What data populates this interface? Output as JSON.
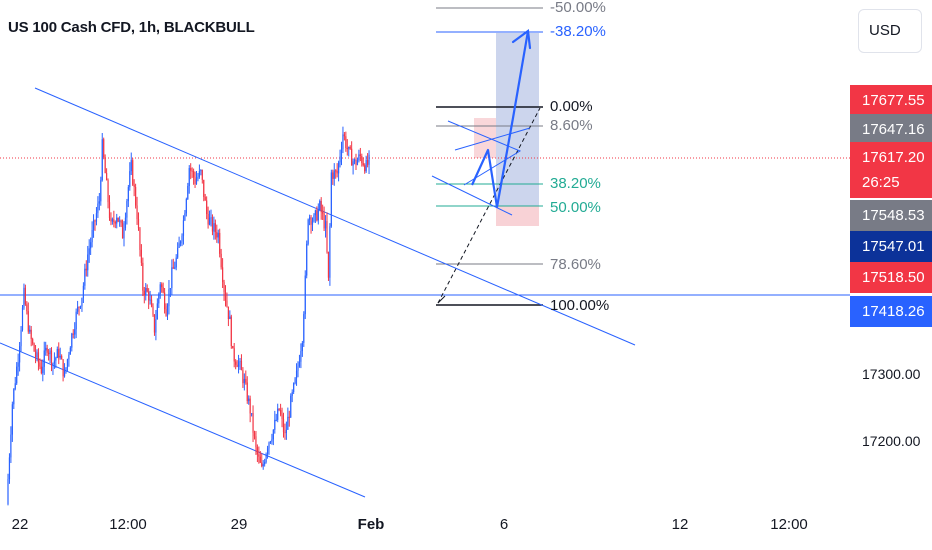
{
  "header": {
    "title": "US 100 Cash CFD, 1h, BLACKBULL"
  },
  "currency_button": "USD",
  "price_scale": {
    "labels": [
      {
        "text": "17677.55",
        "kind": "red"
      },
      {
        "text": "17647.16",
        "kind": "grey"
      },
      {
        "text": "17548.53",
        "kind": "grey"
      },
      {
        "text": "17547.01",
        "kind": "navy"
      },
      {
        "text": "17518.50",
        "kind": "red"
      },
      {
        "text": "17418.26",
        "kind": "blue"
      }
    ],
    "current_price": "17617.20",
    "countdown": "26:25",
    "ticks": [
      "17300.00",
      "17200.00"
    ]
  },
  "time_axis": [
    "22",
    "12:00",
    "29",
    "Feb",
    "6",
    "12",
    "12:00"
  ],
  "fibonacci": {
    "levels": [
      "-50.00%",
      "-38.20%",
      "0.00%",
      "8.60%",
      "38.20%",
      "50.00%",
      "78.60%",
      "100.00%"
    ],
    "colors": {
      "-50.00%": "#787b86",
      "-38.20%": "#2962ff",
      "0.00%": "#131722",
      "8.60%": "#787b86",
      "38.20%": "#22ab94",
      "50.00%": "#22ab94",
      "78.60%": "#787b86",
      "100.00%": "#131722"
    }
  },
  "colors": {
    "up": "#2962ff",
    "down": "#f23645",
    "trendline": "#2962ff",
    "target_zone": "#c3ceea",
    "stop_zone": "#f7cdd1"
  },
  "chart_data": {
    "type": "candlestick",
    "title": "US 100 Cash CFD, 1h, BLACKBULL",
    "x_ticks": [
      "22",
      "12:00",
      "29",
      "Feb",
      "6",
      "12",
      "12:00"
    ],
    "y_ticks": [
      17200,
      17300
    ],
    "y_range": [
      17110,
      17890
    ],
    "current_price": 17617.2,
    "horizontal_line": 17418.26,
    "close_path": [
      [
        0,
        17110
      ],
      [
        4,
        17260
      ],
      [
        8,
        17330
      ],
      [
        12,
        17420
      ],
      [
        16,
        17360
      ],
      [
        20,
        17330
      ],
      [
        24,
        17310
      ],
      [
        28,
        17345
      ],
      [
        32,
        17320
      ],
      [
        36,
        17335
      ],
      [
        40,
        17300
      ],
      [
        44,
        17350
      ],
      [
        48,
        17390
      ],
      [
        52,
        17420
      ],
      [
        56,
        17480
      ],
      [
        60,
        17520
      ],
      [
        64,
        17560
      ],
      [
        66,
        17640
      ],
      [
        68,
        17600
      ],
      [
        72,
        17520
      ],
      [
        76,
        17540
      ],
      [
        80,
        17510
      ],
      [
        84,
        17580
      ],
      [
        86,
        17610
      ],
      [
        90,
        17540
      ],
      [
        94,
        17430
      ],
      [
        98,
        17420
      ],
      [
        102,
        17370
      ],
      [
        106,
        17440
      ],
      [
        110,
        17400
      ],
      [
        114,
        17450
      ],
      [
        118,
        17480
      ],
      [
        122,
        17530
      ],
      [
        126,
        17610
      ],
      [
        130,
        17590
      ],
      [
        134,
        17600
      ],
      [
        138,
        17540
      ],
      [
        142,
        17520
      ],
      [
        146,
        17510
      ],
      [
        150,
        17430
      ],
      [
        154,
        17380
      ],
      [
        156,
        17330
      ],
      [
        160,
        17320
      ],
      [
        164,
        17290
      ],
      [
        168,
        17250
      ],
      [
        172,
        17190
      ],
      [
        176,
        17160
      ],
      [
        180,
        17200
      ],
      [
        184,
        17220
      ],
      [
        188,
        17250
      ],
      [
        192,
        17210
      ],
      [
        196,
        17260
      ],
      [
        200,
        17300
      ],
      [
        204,
        17360
      ],
      [
        206,
        17440
      ],
      [
        208,
        17540
      ],
      [
        212,
        17530
      ],
      [
        216,
        17550
      ],
      [
        220,
        17520
      ],
      [
        222,
        17440
      ],
      [
        224,
        17600
      ],
      [
        228,
        17600
      ],
      [
        232,
        17660
      ],
      [
        236,
        17630
      ],
      [
        240,
        17615
      ],
      [
        244,
        17625
      ],
      [
        248,
        17610
      ],
      [
        250,
        17617
      ]
    ],
    "fib_retracement": {
      "high": 17690,
      "low": 17420
    }
  }
}
